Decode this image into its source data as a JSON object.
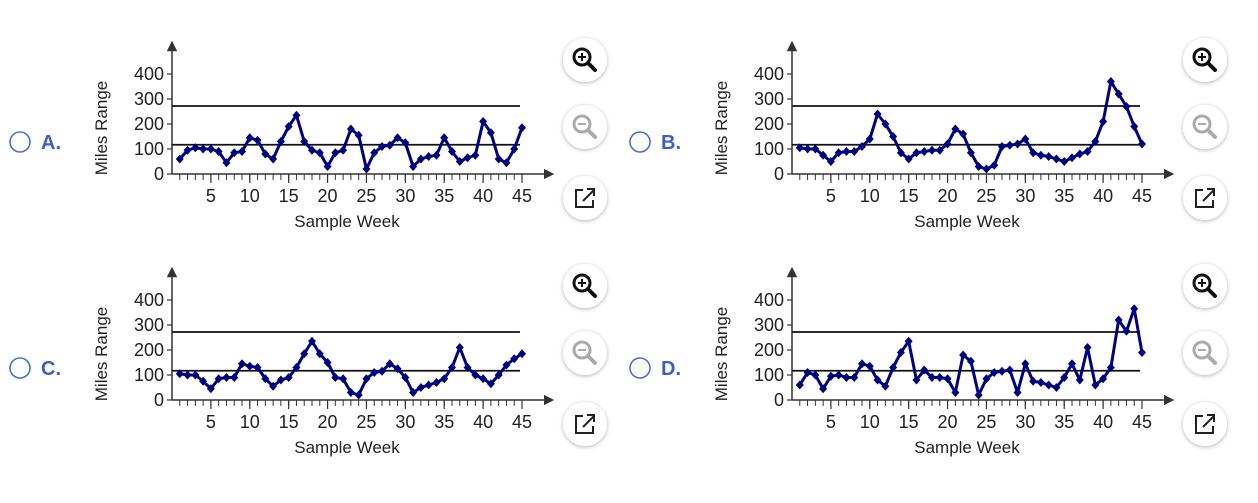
{
  "options": [
    "A.",
    "B.",
    "C.",
    "D."
  ],
  "chart_data": [
    {
      "type": "line",
      "ylabel": "Miles Range",
      "xlabel": "Sample Week",
      "color": "#00007f",
      "x": [
        1,
        2,
        3,
        4,
        5,
        6,
        7,
        8,
        9,
        10,
        11,
        12,
        13,
        14,
        15,
        16,
        17,
        18,
        19,
        20,
        21,
        22,
        23,
        24,
        25,
        26,
        27,
        28,
        29,
        30,
        31,
        32,
        33,
        34,
        35,
        36,
        37,
        38,
        39,
        40,
        41,
        42,
        43,
        44,
        45
      ],
      "values": [
        60,
        95,
        105,
        100,
        100,
        90,
        45,
        85,
        90,
        145,
        135,
        80,
        60,
        130,
        190,
        235,
        130,
        95,
        85,
        30,
        85,
        95,
        180,
        155,
        20,
        85,
        110,
        115,
        145,
        125,
        30,
        60,
        70,
        75,
        145,
        90,
        50,
        65,
        75,
        210,
        165,
        60,
        45,
        100,
        185
      ],
      "xlim": [
        0,
        45
      ],
      "xticks": [
        5,
        10,
        15,
        20,
        25,
        30,
        35,
        40,
        45
      ],
      "ylim": [
        0,
        400
      ],
      "yticks": [
        0,
        100,
        200,
        300,
        400
      ],
      "hlines": [
        272,
        117
      ]
    },
    {
      "type": "line",
      "ylabel": "Miles Range",
      "xlabel": "Sample Week",
      "color": "#00007f",
      "x": [
        1,
        2,
        3,
        4,
        5,
        6,
        7,
        8,
        9,
        10,
        11,
        12,
        13,
        14,
        15,
        16,
        17,
        18,
        19,
        20,
        21,
        22,
        23,
        24,
        25,
        26,
        27,
        28,
        29,
        30,
        31,
        32,
        33,
        34,
        35,
        36,
        37,
        38,
        39,
        40,
        41,
        42,
        43,
        44,
        45
      ],
      "values": [
        105,
        100,
        100,
        75,
        50,
        85,
        90,
        90,
        110,
        140,
        240,
        200,
        150,
        85,
        60,
        85,
        90,
        95,
        95,
        120,
        180,
        160,
        85,
        30,
        20,
        35,
        110,
        115,
        120,
        140,
        85,
        75,
        70,
        60,
        50,
        65,
        80,
        90,
        130,
        210,
        370,
        320,
        270,
        190,
        120
      ],
      "xlim": [
        0,
        45
      ],
      "xticks": [
        5,
        10,
        15,
        20,
        25,
        30,
        35,
        40,
        45
      ],
      "ylim": [
        0,
        400
      ],
      "yticks": [
        0,
        100,
        200,
        300,
        400
      ],
      "hlines": [
        272,
        117
      ]
    },
    {
      "type": "line",
      "ylabel": "Miles Range",
      "xlabel": "Sample Week",
      "color": "#00007f",
      "x": [
        1,
        2,
        3,
        4,
        5,
        6,
        7,
        8,
        9,
        10,
        11,
        12,
        13,
        14,
        15,
        16,
        17,
        18,
        19,
        20,
        21,
        22,
        23,
        24,
        25,
        26,
        27,
        28,
        29,
        30,
        31,
        32,
        33,
        34,
        35,
        36,
        37,
        38,
        39,
        40,
        41,
        42,
        43,
        44,
        45
      ],
      "values": [
        105,
        100,
        100,
        75,
        45,
        85,
        90,
        90,
        145,
        135,
        130,
        85,
        55,
        80,
        90,
        130,
        185,
        235,
        185,
        150,
        90,
        85,
        30,
        20,
        85,
        110,
        115,
        145,
        125,
        90,
        30,
        50,
        60,
        70,
        85,
        130,
        210,
        130,
        100,
        85,
        65,
        100,
        140,
        165,
        185
      ],
      "xlim": [
        0,
        45
      ],
      "xticks": [
        5,
        10,
        15,
        20,
        25,
        30,
        35,
        40,
        45
      ],
      "ylim": [
        0,
        400
      ],
      "yticks": [
        0,
        100,
        200,
        300,
        400
      ],
      "hlines": [
        272,
        117
      ]
    },
    {
      "type": "line",
      "ylabel": "Miles Range",
      "xlabel": "Sample Week",
      "color": "#00007f",
      "x": [
        1,
        2,
        3,
        4,
        5,
        6,
        7,
        8,
        9,
        10,
        11,
        12,
        13,
        14,
        15,
        16,
        17,
        18,
        19,
        20,
        21,
        22,
        23,
        24,
        25,
        26,
        27,
        28,
        29,
        30,
        31,
        32,
        33,
        34,
        35,
        36,
        37,
        38,
        39,
        40,
        41,
        42,
        43,
        44,
        45
      ],
      "values": [
        60,
        110,
        100,
        45,
        95,
        100,
        90,
        90,
        145,
        135,
        80,
        55,
        130,
        190,
        235,
        80,
        120,
        90,
        90,
        85,
        30,
        180,
        155,
        20,
        85,
        110,
        115,
        120,
        30,
        145,
        75,
        70,
        60,
        50,
        90,
        145,
        80,
        210,
        60,
        85,
        130,
        320,
        275,
        365,
        190
      ],
      "xlim": [
        0,
        45
      ],
      "xticks": [
        5,
        10,
        15,
        20,
        25,
        30,
        35,
        40,
        45
      ],
      "ylim": [
        0,
        400
      ],
      "yticks": [
        0,
        100,
        200,
        300,
        400
      ],
      "hlines": [
        272,
        117
      ]
    }
  ]
}
